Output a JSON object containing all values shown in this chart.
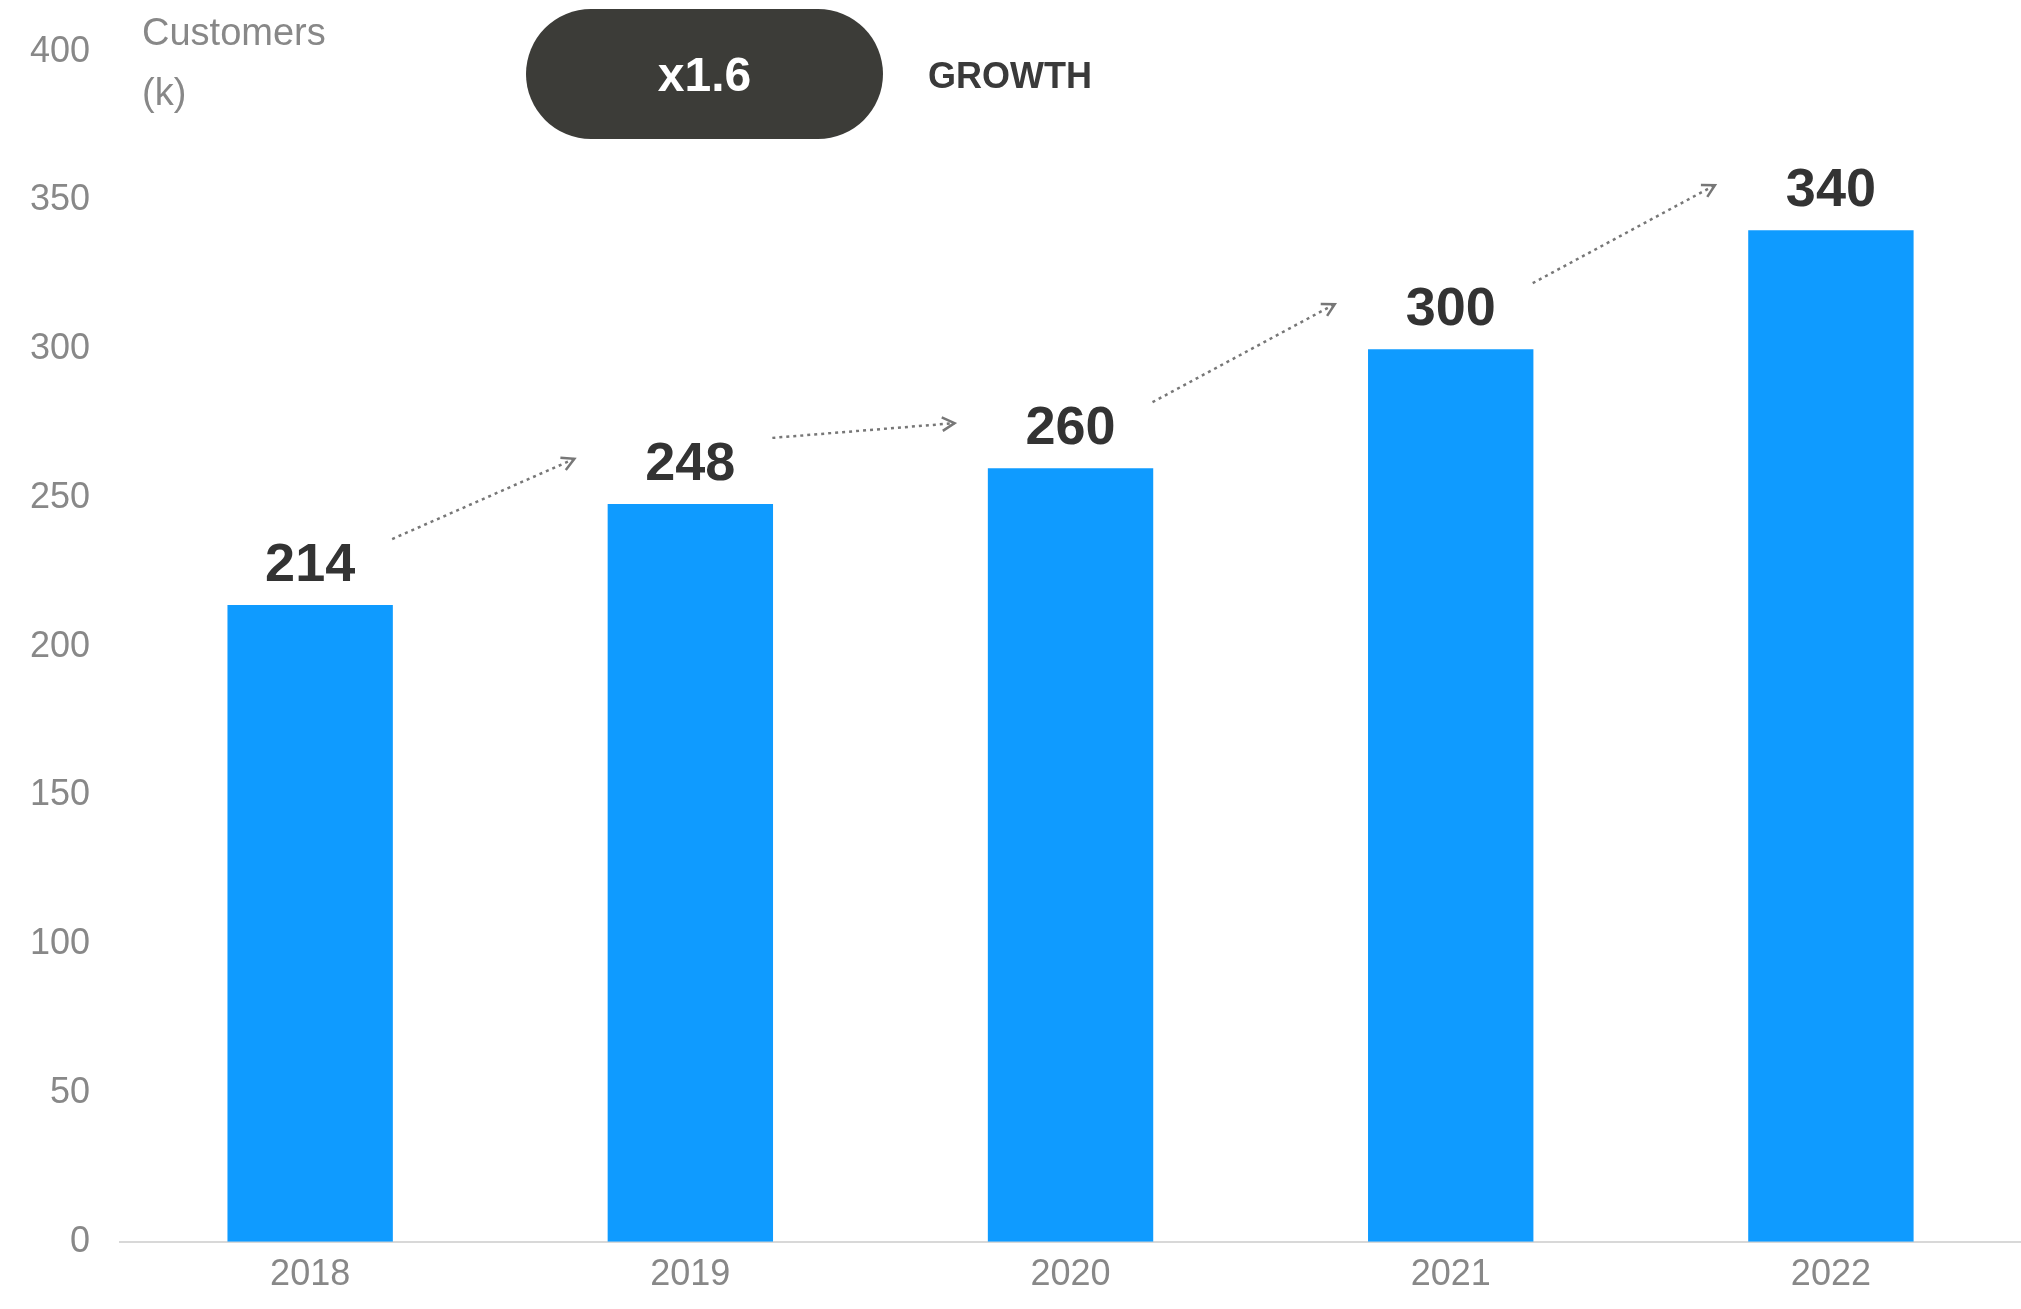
{
  "chart_data": {
    "type": "bar",
    "ylabel": "Customers (k)",
    "categories": [
      "2018",
      "2019",
      "2020",
      "2021",
      "2022"
    ],
    "values": [
      214,
      248,
      260,
      300,
      340
    ],
    "color": "#0f9bff",
    "ylim": [
      0,
      400
    ],
    "yticks": [
      0,
      50,
      100,
      150,
      200,
      250,
      300,
      350,
      400
    ],
    "grid": false,
    "legend": false,
    "data_labels": true,
    "annotations": [
      "x1.6",
      "GROWTH"
    ]
  }
}
